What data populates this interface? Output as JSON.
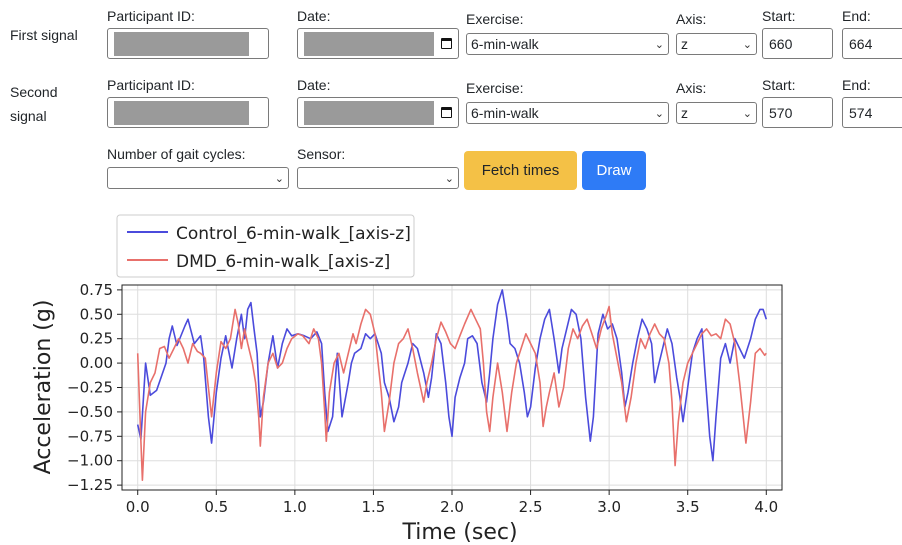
{
  "form": {
    "first": {
      "title": "First signal",
      "participant_label": "Participant ID:",
      "date_label": "Date:",
      "exercise_label": "Exercise:",
      "exercise_value": "6-min-walk",
      "axis_label": "Axis:",
      "axis_value": "z",
      "start_label": "Start:",
      "start_value": "660",
      "end_label": "End:",
      "end_value": "664"
    },
    "second": {
      "title_line1": "Second",
      "title_line2": "signal",
      "participant_label": "Participant ID:",
      "date_label": "Date:",
      "exercise_label": "Exercise:",
      "exercise_value": "6-min-walk",
      "axis_label": "Axis:",
      "axis_value": "z",
      "start_label": "Start:",
      "start_value": "570",
      "end_label": "End:",
      "end_value": "574"
    },
    "gait_label": "Number of gait cycles:",
    "gait_value": "",
    "sensor_label": "Sensor:",
    "sensor_value": "",
    "fetch_button": "Fetch times",
    "draw_button": "Draw"
  },
  "chart_data": {
    "type": "line",
    "xlabel": "Time (sec)",
    "ylabel": "Acceleration (g)",
    "xlim": [
      -0.1,
      4.1
    ],
    "ylim": [
      -1.3,
      0.8
    ],
    "xticks": [
      "0.0",
      "0.5",
      "1.0",
      "1.5",
      "2.0",
      "2.5",
      "3.0",
      "3.5",
      "4.0"
    ],
    "yticks": [
      "0.75",
      "0.50",
      "0.25",
      "0.00",
      "−0.25",
      "−0.50",
      "−0.75",
      "−1.00",
      "−1.25"
    ],
    "grid": true,
    "legend_position": "top-left",
    "series": [
      {
        "name": "Control_6-min-walk_[axis-z]",
        "color": "#4b4bdc",
        "points": [
          [
            0.0,
            -0.63
          ],
          [
            0.02,
            -0.78
          ],
          [
            0.05,
            0.0
          ],
          [
            0.08,
            -0.33
          ],
          [
            0.12,
            -0.28
          ],
          [
            0.18,
            0.0
          ],
          [
            0.2,
            0.25
          ],
          [
            0.22,
            0.38
          ],
          [
            0.25,
            0.18
          ],
          [
            0.3,
            0.38
          ],
          [
            0.32,
            0.45
          ],
          [
            0.36,
            0.2
          ],
          [
            0.4,
            0.28
          ],
          [
            0.42,
            0.05
          ],
          [
            0.45,
            -0.55
          ],
          [
            0.47,
            -0.82
          ],
          [
            0.5,
            -0.3
          ],
          [
            0.53,
            0.05
          ],
          [
            0.56,
            0.28
          ],
          [
            0.6,
            -0.05
          ],
          [
            0.63,
            0.25
          ],
          [
            0.66,
            0.5
          ],
          [
            0.68,
            0.25
          ],
          [
            0.7,
            0.55
          ],
          [
            0.72,
            0.62
          ],
          [
            0.74,
            0.35
          ],
          [
            0.76,
            0.1
          ],
          [
            0.78,
            -0.55
          ],
          [
            0.8,
            -0.4
          ],
          [
            0.83,
            0.0
          ],
          [
            0.86,
            0.28
          ],
          [
            0.89,
            -0.05
          ],
          [
            0.92,
            0.2
          ],
          [
            0.95,
            0.35
          ],
          [
            0.98,
            0.28
          ],
          [
            1.02,
            0.3
          ],
          [
            1.06,
            0.28
          ],
          [
            1.1,
            0.25
          ],
          [
            1.14,
            0.32
          ],
          [
            1.17,
            0.2
          ],
          [
            1.19,
            -0.3
          ],
          [
            1.21,
            -0.7
          ],
          [
            1.24,
            -0.55
          ],
          [
            1.27,
            0.1
          ],
          [
            1.3,
            -0.55
          ],
          [
            1.34,
            -0.2
          ],
          [
            1.36,
            0.0
          ],
          [
            1.38,
            0.1
          ],
          [
            1.42,
            0.15
          ],
          [
            1.45,
            0.3
          ],
          [
            1.48,
            0.25
          ],
          [
            1.51,
            0.3
          ],
          [
            1.55,
            0.1
          ],
          [
            1.57,
            -0.2
          ],
          [
            1.6,
            -0.35
          ],
          [
            1.63,
            -0.6
          ],
          [
            1.66,
            -0.45
          ],
          [
            1.68,
            -0.2
          ],
          [
            1.72,
            0.0
          ],
          [
            1.75,
            0.2
          ],
          [
            1.78,
            0.15
          ],
          [
            1.82,
            -0.1
          ],
          [
            1.85,
            -0.35
          ],
          [
            1.87,
            -0.15
          ],
          [
            1.9,
            0.3
          ],
          [
            1.93,
            0.2
          ],
          [
            1.96,
            -0.2
          ],
          [
            1.98,
            -0.55
          ],
          [
            2.0,
            -0.75
          ],
          [
            2.02,
            -0.35
          ],
          [
            2.05,
            -0.15
          ],
          [
            2.08,
            0.0
          ],
          [
            2.1,
            0.25
          ],
          [
            2.13,
            0.28
          ],
          [
            2.16,
            0.2
          ],
          [
            2.19,
            -0.2
          ],
          [
            2.22,
            -0.4
          ],
          [
            2.24,
            -0.1
          ],
          [
            2.26,
            0.25
          ],
          [
            2.29,
            0.6
          ],
          [
            2.32,
            0.75
          ],
          [
            2.35,
            0.45
          ],
          [
            2.37,
            0.2
          ],
          [
            2.4,
            0.15
          ],
          [
            2.43,
            0.0
          ],
          [
            2.46,
            -0.3
          ],
          [
            2.48,
            -0.55
          ],
          [
            2.5,
            -0.45
          ],
          [
            2.53,
            -0.05
          ],
          [
            2.56,
            0.25
          ],
          [
            2.59,
            0.45
          ],
          [
            2.62,
            0.55
          ],
          [
            2.65,
            0.25
          ],
          [
            2.68,
            -0.1
          ],
          [
            2.7,
            0.15
          ],
          [
            2.73,
            0.35
          ],
          [
            2.76,
            0.55
          ],
          [
            2.79,
            0.5
          ],
          [
            2.82,
            0.25
          ],
          [
            2.85,
            -0.35
          ],
          [
            2.88,
            -0.8
          ],
          [
            2.9,
            -0.55
          ],
          [
            2.93,
            0.3
          ],
          [
            2.96,
            0.5
          ],
          [
            2.99,
            0.35
          ],
          [
            3.02,
            0.4
          ],
          [
            3.05,
            0.25
          ],
          [
            3.08,
            -0.1
          ],
          [
            3.1,
            -0.45
          ],
          [
            3.12,
            -0.3
          ],
          [
            3.15,
            0.0
          ],
          [
            3.18,
            0.25
          ],
          [
            3.21,
            0.45
          ],
          [
            3.24,
            0.35
          ],
          [
            3.27,
            0.2
          ],
          [
            3.29,
            -0.2
          ],
          [
            3.31,
            -0.05
          ],
          [
            3.34,
            0.15
          ],
          [
            3.37,
            0.35
          ],
          [
            3.4,
            0.2
          ],
          [
            3.43,
            -0.15
          ],
          [
            3.45,
            -0.35
          ],
          [
            3.47,
            -0.6
          ],
          [
            3.5,
            -0.25
          ],
          [
            3.53,
            0.1
          ],
          [
            3.56,
            0.25
          ],
          [
            3.59,
            0.35
          ],
          [
            3.61,
            -0.1
          ],
          [
            3.64,
            -0.75
          ],
          [
            3.66,
            -1.0
          ],
          [
            3.68,
            -0.55
          ],
          [
            3.71,
            0.05
          ],
          [
            3.74,
            0.2
          ],
          [
            3.77,
            0.0
          ],
          [
            3.8,
            0.25
          ],
          [
            3.83,
            0.15
          ],
          [
            3.86,
            0.05
          ],
          [
            3.9,
            0.25
          ],
          [
            3.93,
            0.45
          ],
          [
            3.96,
            0.55
          ],
          [
            3.98,
            0.55
          ],
          [
            4.0,
            0.45
          ]
        ]
      },
      {
        "name": "DMD_6-min-walk_[axis-z]",
        "color": "#e8706b",
        "points": [
          [
            0.0,
            0.1
          ],
          [
            0.02,
            -0.8
          ],
          [
            0.03,
            -1.2
          ],
          [
            0.05,
            -0.5
          ],
          [
            0.08,
            -0.2
          ],
          [
            0.11,
            -0.1
          ],
          [
            0.14,
            0.15
          ],
          [
            0.17,
            0.17
          ],
          [
            0.2,
            0.05
          ],
          [
            0.23,
            0.15
          ],
          [
            0.26,
            0.25
          ],
          [
            0.29,
            0.15
          ],
          [
            0.32,
            0.0
          ],
          [
            0.35,
            0.2
          ],
          [
            0.38,
            0.12
          ],
          [
            0.4,
            0.1
          ],
          [
            0.43,
            0.05
          ],
          [
            0.45,
            -0.25
          ],
          [
            0.47,
            -0.55
          ],
          [
            0.5,
            -0.1
          ],
          [
            0.53,
            0.22
          ],
          [
            0.56,
            0.15
          ],
          [
            0.59,
            0.25
          ],
          [
            0.62,
            0.55
          ],
          [
            0.64,
            0.4
          ],
          [
            0.66,
            0.15
          ],
          [
            0.68,
            0.35
          ],
          [
            0.7,
            0.2
          ],
          [
            0.73,
            0.0
          ],
          [
            0.75,
            -0.2
          ],
          [
            0.77,
            -0.55
          ],
          [
            0.78,
            -0.85
          ],
          [
            0.8,
            -0.35
          ],
          [
            0.83,
            0.0
          ],
          [
            0.86,
            0.1
          ],
          [
            0.89,
            -0.05
          ],
          [
            0.92,
            0.0
          ],
          [
            0.95,
            0.15
          ],
          [
            0.98,
            0.25
          ],
          [
            1.02,
            0.3
          ],
          [
            1.05,
            0.28
          ],
          [
            1.09,
            0.2
          ],
          [
            1.12,
            0.35
          ],
          [
            1.15,
            0.25
          ],
          [
            1.17,
            0.0
          ],
          [
            1.19,
            -0.5
          ],
          [
            1.2,
            -0.8
          ],
          [
            1.22,
            -0.3
          ],
          [
            1.25,
            0.0
          ],
          [
            1.28,
            0.1
          ],
          [
            1.31,
            -0.1
          ],
          [
            1.34,
            0.1
          ],
          [
            1.37,
            0.3
          ],
          [
            1.39,
            0.2
          ],
          [
            1.42,
            0.4
          ],
          [
            1.45,
            0.55
          ],
          [
            1.48,
            0.5
          ],
          [
            1.51,
            0.3
          ],
          [
            1.53,
            0.0
          ],
          [
            1.55,
            -0.3
          ],
          [
            1.57,
            -0.7
          ],
          [
            1.6,
            -0.4
          ],
          [
            1.63,
            0.0
          ],
          [
            1.66,
            0.2
          ],
          [
            1.69,
            0.25
          ],
          [
            1.72,
            0.35
          ],
          [
            1.75,
            0.15
          ],
          [
            1.78,
            -0.1
          ],
          [
            1.82,
            -0.4
          ],
          [
            1.84,
            -0.2
          ],
          [
            1.87,
            0.0
          ],
          [
            1.9,
            0.25
          ],
          [
            1.93,
            0.42
          ],
          [
            1.96,
            0.32
          ],
          [
            1.99,
            0.2
          ],
          [
            2.02,
            0.15
          ],
          [
            2.05,
            0.28
          ],
          [
            2.08,
            0.4
          ],
          [
            2.12,
            0.55
          ],
          [
            2.15,
            0.45
          ],
          [
            2.18,
            0.35
          ],
          [
            2.2,
            0.0
          ],
          [
            2.22,
            -0.5
          ],
          [
            2.24,
            -0.7
          ],
          [
            2.26,
            -0.35
          ],
          [
            2.29,
            0.0
          ],
          [
            2.32,
            -0.3
          ],
          [
            2.35,
            -0.7
          ],
          [
            2.38,
            -0.3
          ],
          [
            2.41,
            0.0
          ],
          [
            2.44,
            0.15
          ],
          [
            2.47,
            0.3
          ],
          [
            2.5,
            0.2
          ],
          [
            2.53,
            0.1
          ],
          [
            2.56,
            -0.2
          ],
          [
            2.58,
            -0.65
          ],
          [
            2.6,
            -0.45
          ],
          [
            2.62,
            -0.3
          ],
          [
            2.65,
            -0.1
          ],
          [
            2.68,
            -0.45
          ],
          [
            2.71,
            -0.25
          ],
          [
            2.74,
            0.15
          ],
          [
            2.77,
            0.35
          ],
          [
            2.8,
            0.25
          ],
          [
            2.83,
            0.38
          ],
          [
            2.86,
            0.45
          ],
          [
            2.89,
            0.3
          ],
          [
            2.92,
            0.15
          ],
          [
            2.95,
            0.35
          ],
          [
            2.98,
            0.48
          ],
          [
            3.0,
            0.58
          ],
          [
            3.02,
            0.3
          ],
          [
            3.05,
            0.05
          ],
          [
            3.08,
            -0.2
          ],
          [
            3.11,
            -0.6
          ],
          [
            3.14,
            -0.35
          ],
          [
            3.17,
            0.0
          ],
          [
            3.2,
            0.25
          ],
          [
            3.23,
            0.15
          ],
          [
            3.26,
            0.3
          ],
          [
            3.29,
            0.4
          ],
          [
            3.32,
            0.3
          ],
          [
            3.35,
            0.25
          ],
          [
            3.38,
            0.0
          ],
          [
            3.4,
            -0.4
          ],
          [
            3.42,
            -1.05
          ],
          [
            3.44,
            -0.6
          ],
          [
            3.47,
            -0.2
          ],
          [
            3.5,
            0.0
          ],
          [
            3.53,
            0.1
          ],
          [
            3.56,
            0.2
          ],
          [
            3.59,
            0.3
          ],
          [
            3.62,
            0.35
          ],
          [
            3.65,
            0.28
          ],
          [
            3.68,
            0.3
          ],
          [
            3.71,
            0.25
          ],
          [
            3.74,
            0.45
          ],
          [
            3.77,
            0.4
          ],
          [
            3.8,
            0.2
          ],
          [
            3.83,
            -0.2
          ],
          [
            3.85,
            -0.5
          ],
          [
            3.87,
            -0.82
          ],
          [
            3.9,
            -0.4
          ],
          [
            3.93,
            0.1
          ],
          [
            3.96,
            0.15
          ],
          [
            3.99,
            0.08
          ],
          [
            4.0,
            0.1
          ]
        ]
      }
    ]
  }
}
